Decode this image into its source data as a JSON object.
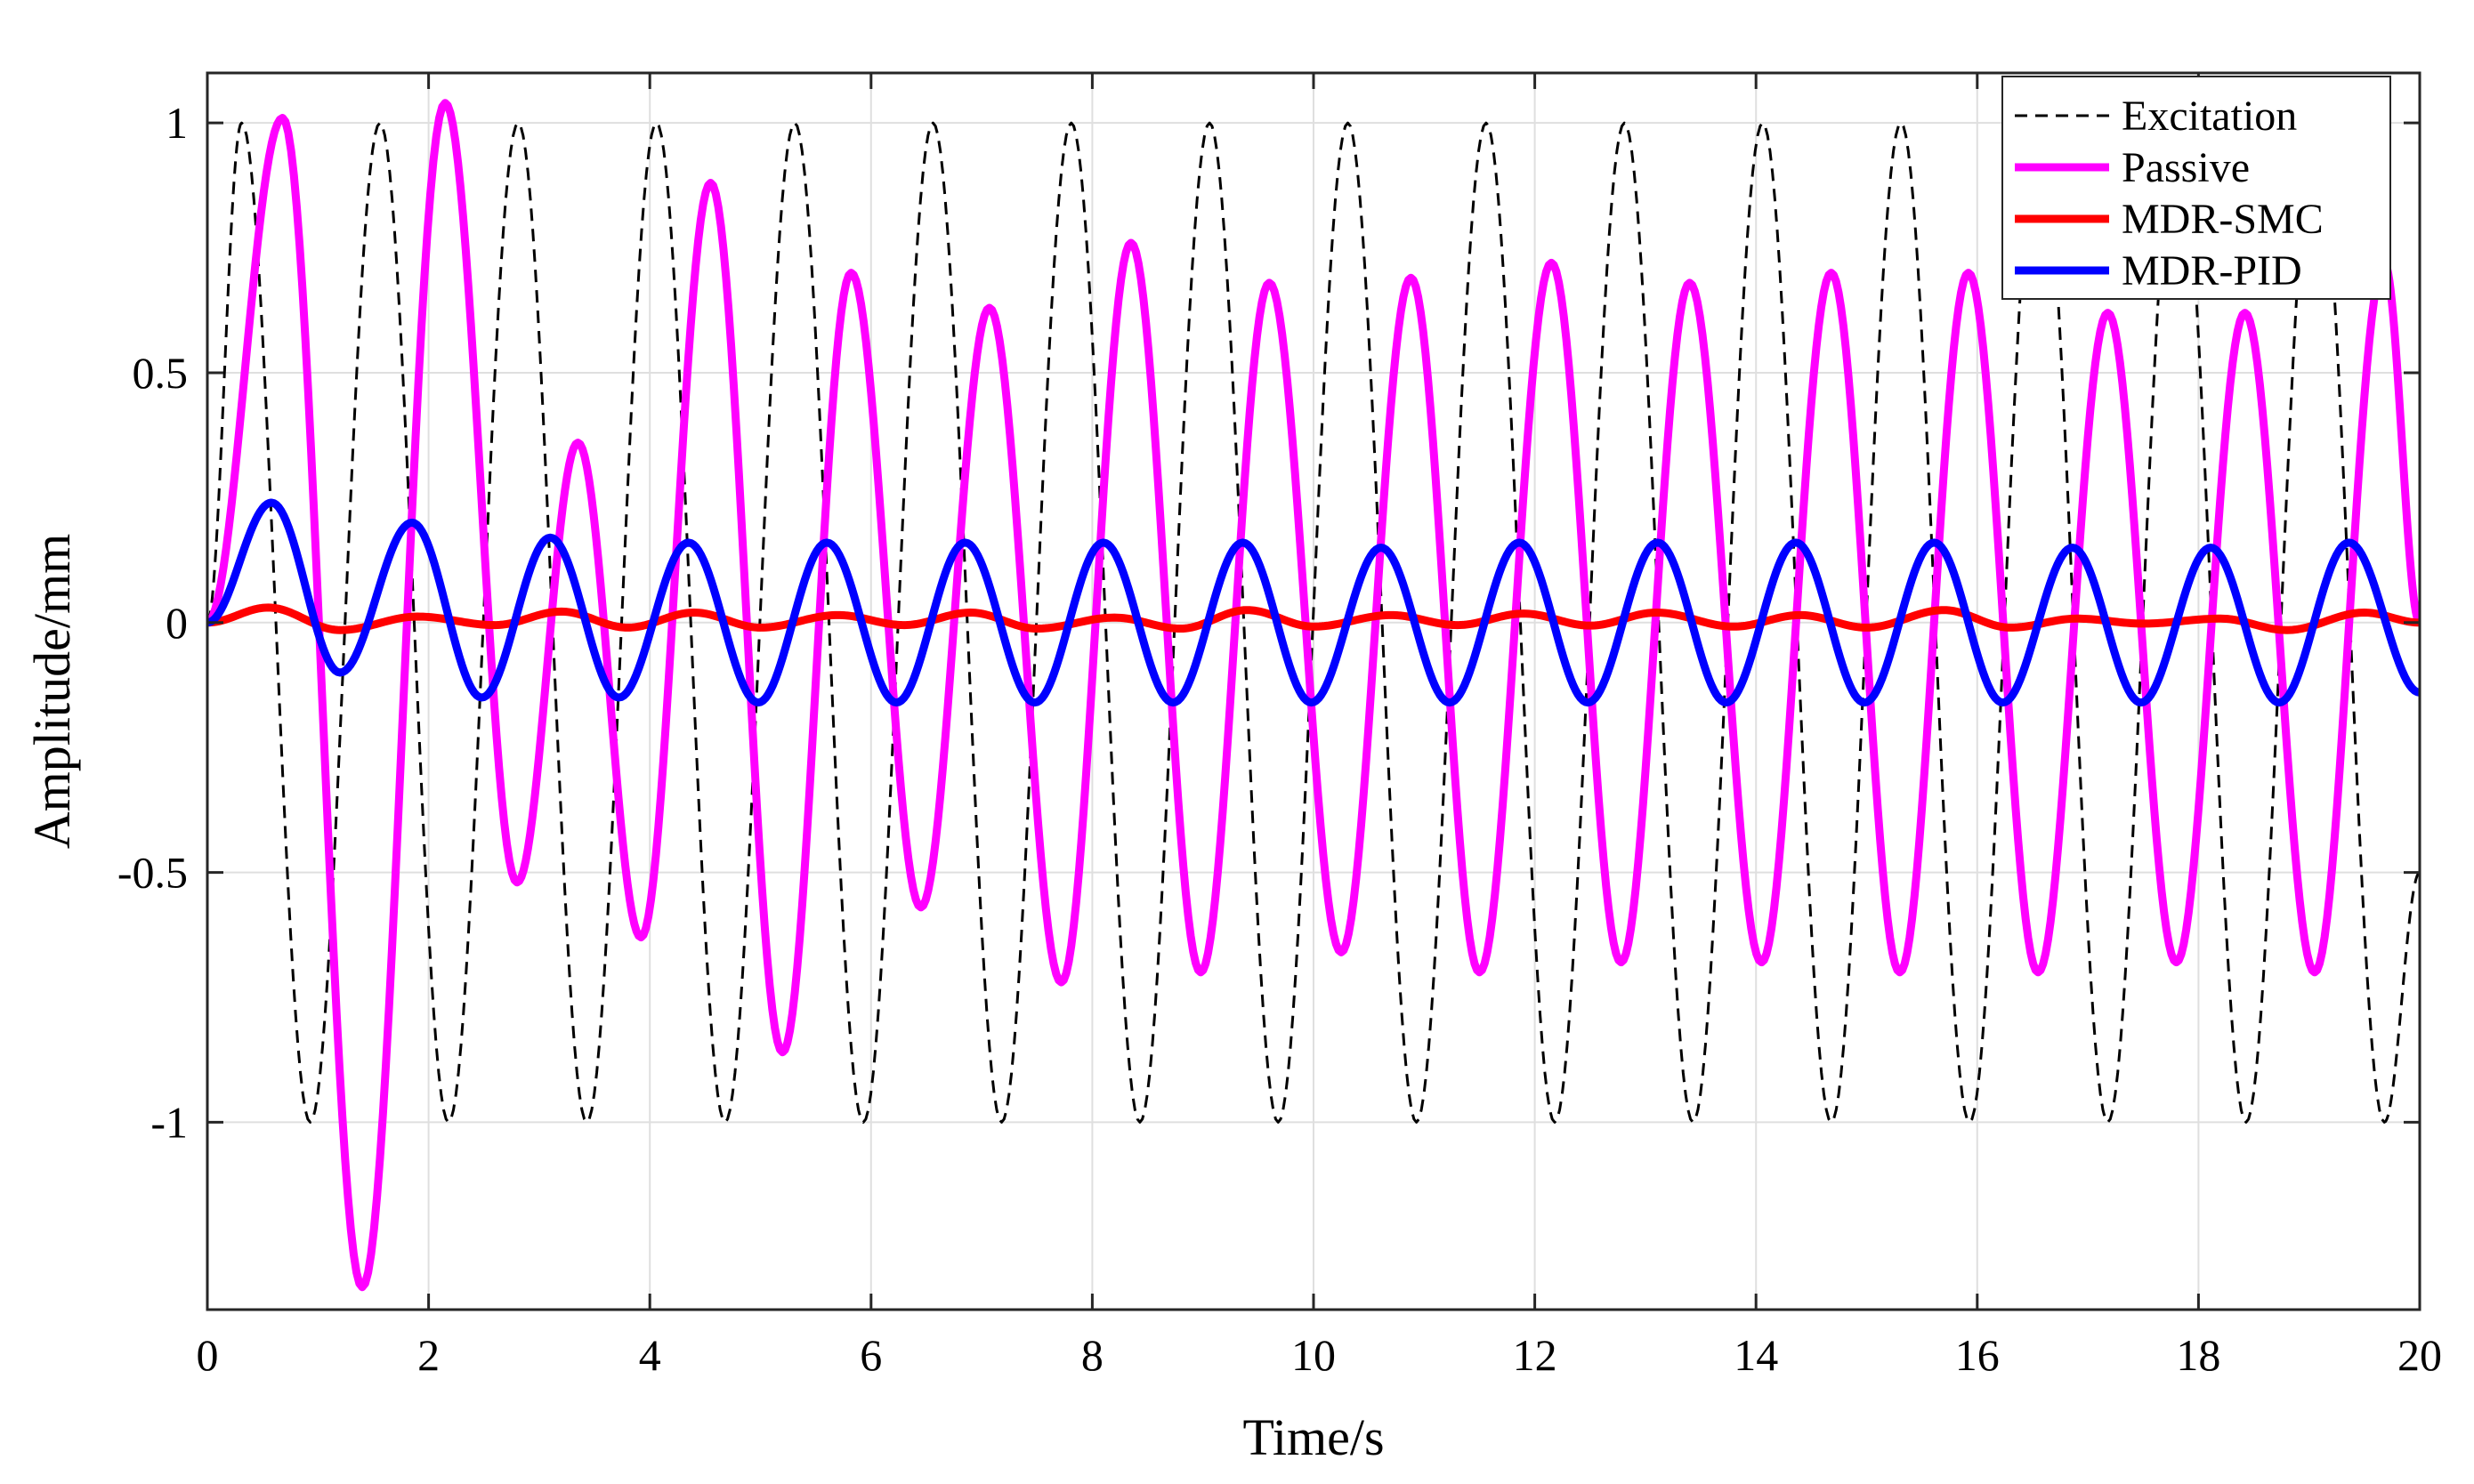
{
  "chart_data": {
    "type": "line",
    "title": "",
    "xlabel": "Time/s",
    "ylabel": "Amplitude/mm",
    "xlim": [
      0,
      20
    ],
    "ylim": [
      -1.375,
      1.1
    ],
    "xticks": [
      0,
      2,
      4,
      6,
      8,
      10,
      12,
      14,
      16,
      18,
      20
    ],
    "xtick_labels": [
      "0",
      "2",
      "4",
      "6",
      "8",
      "10",
      "12",
      "14",
      "16",
      "18",
      "20"
    ],
    "yticks": [
      1,
      0.5,
      0,
      -0.5,
      -1
    ],
    "ytick_labels": [
      "1",
      "0.5",
      "0",
      "-0.5",
      "-1"
    ],
    "grid": true,
    "legend_position": "top-right",
    "series": [
      {
        "name": "Excitation",
        "color": "#000000",
        "style": "dashed",
        "x": [
          0,
          0.31,
          0.93,
          1.56,
          2.18,
          2.81,
          3.43,
          4.06,
          4.68,
          5.31,
          5.93,
          6.56,
          7.18,
          7.81,
          8.43,
          9.06,
          9.68,
          10.31,
          10.93,
          11.56,
          12.18,
          12.81,
          13.43,
          14.06,
          14.68,
          15.31,
          15.93,
          16.56,
          17.18,
          17.81,
          18.43,
          19.06,
          19.68,
          20
        ],
        "y": [
          0,
          1,
          -1,
          1,
          -1,
          1,
          -1,
          1,
          -1,
          1,
          -1,
          1,
          -1,
          1,
          -1,
          1,
          -1,
          1,
          -1,
          1,
          -1,
          1,
          -1,
          1,
          -1,
          1,
          -1,
          1,
          -1,
          1,
          -1,
          1,
          -1,
          -0.5
        ]
      },
      {
        "name": "Passive",
        "color": "#ff00ff",
        "style": "solid",
        "x": [
          0,
          0.68,
          1.4,
          2.15,
          2.8,
          3.35,
          3.92,
          4.55,
          5.2,
          5.82,
          6.45,
          7.07,
          7.72,
          8.35,
          8.98,
          9.6,
          10.25,
          10.88,
          11.5,
          12.15,
          12.78,
          13.4,
          14.05,
          14.68,
          15.3,
          15.92,
          16.55,
          17.18,
          17.8,
          18.42,
          19.05,
          19.68,
          20
        ],
        "y": [
          0,
          1.01,
          -1.33,
          1.04,
          -0.52,
          0.36,
          -0.63,
          0.88,
          -0.86,
          0.7,
          -0.57,
          0.63,
          -0.72,
          0.76,
          -0.7,
          0.68,
          -0.66,
          0.69,
          -0.7,
          0.72,
          -0.68,
          0.68,
          -0.68,
          0.7,
          -0.7,
          0.7,
          -0.7,
          0.62,
          -0.68,
          0.62,
          -0.7,
          0.72,
          0
        ]
      },
      {
        "name": "MDR-SMC",
        "color": "#ff0000",
        "style": "solid",
        "x": [
          0,
          0.55,
          1.2,
          1.9,
          2.6,
          3.2,
          3.8,
          4.4,
          5.0,
          5.7,
          6.3,
          6.9,
          7.5,
          8.2,
          8.8,
          9.4,
          10.0,
          10.7,
          11.3,
          11.9,
          12.5,
          13.1,
          13.8,
          14.4,
          15.0,
          15.7,
          16.3,
          16.9,
          17.5,
          18.2,
          18.8,
          19.5,
          20
        ],
        "y": [
          0,
          0.03,
          -0.015,
          0.012,
          -0.005,
          0.022,
          -0.01,
          0.02,
          -0.01,
          0.015,
          -0.005,
          0.02,
          -0.012,
          0.01,
          -0.012,
          0.025,
          -0.008,
          0.015,
          -0.005,
          0.018,
          -0.006,
          0.02,
          -0.008,
          0.015,
          -0.01,
          0.025,
          -0.01,
          0.008,
          -0.002,
          0.008,
          -0.015,
          0.02,
          0
        ]
      },
      {
        "name": "MDR-PID",
        "color": "#0000ff",
        "style": "solid",
        "x": [
          0,
          0.58,
          1.2,
          1.85,
          2.48,
          3.1,
          3.72,
          4.35,
          4.98,
          5.6,
          6.23,
          6.85,
          7.48,
          8.1,
          8.73,
          9.36,
          9.98,
          10.61,
          11.23,
          11.86,
          12.48,
          13.11,
          13.73,
          14.36,
          14.98,
          15.61,
          16.23,
          16.86,
          17.48,
          18.11,
          18.73,
          19.36,
          20
        ],
        "y": [
          0,
          0.24,
          -0.1,
          0.2,
          -0.15,
          0.17,
          -0.15,
          0.16,
          -0.16,
          0.16,
          -0.16,
          0.16,
          -0.16,
          0.16,
          -0.16,
          0.16,
          -0.16,
          0.15,
          -0.16,
          0.16,
          -0.16,
          0.16,
          -0.16,
          0.16,
          -0.16,
          0.16,
          -0.16,
          0.15,
          -0.16,
          0.15,
          -0.16,
          0.16,
          -0.14
        ]
      }
    ]
  }
}
